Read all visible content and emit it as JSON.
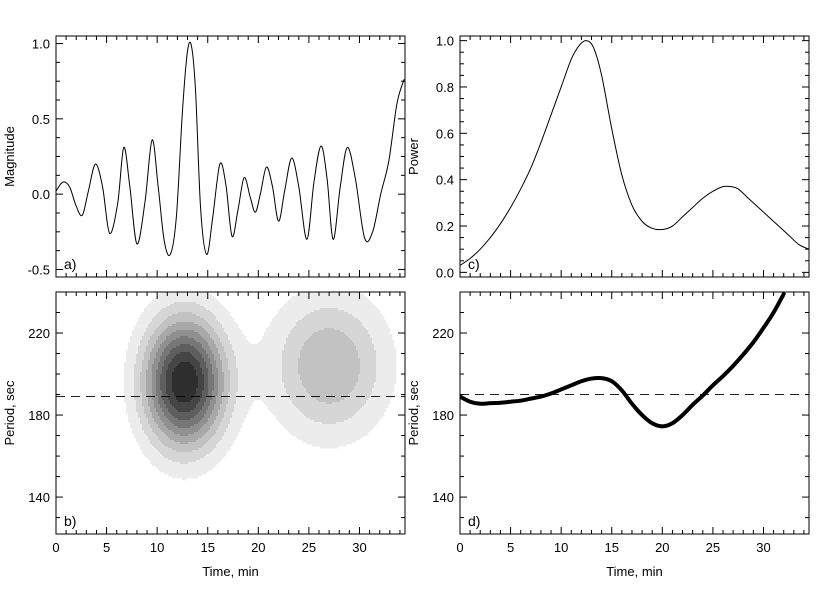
{
  "chart_data": [
    {
      "panel": "a)",
      "type": "line",
      "xlabel": "",
      "ylabel": "Magnitude",
      "xlim": [
        0,
        34.5
      ],
      "ylim": [
        -0.55,
        1.05
      ],
      "xticks": [
        0,
        5,
        10,
        15,
        20,
        25,
        30
      ],
      "yticks": [
        -0.5,
        0.0,
        0.5,
        1.0
      ],
      "ytick_labels": [
        "-0.5",
        "0.0",
        "0.5",
        "1.0"
      ],
      "series": [
        {
          "x": [
            0,
            0.5,
            0.9,
            1.4,
            2.0,
            2.6,
            3.2,
            3.9,
            4.6,
            5.3,
            6.1,
            6.7,
            7.3,
            8.0,
            8.8,
            9.5,
            10.1,
            10.7,
            11.3,
            11.9,
            12.5,
            13.0,
            13.4,
            13.8,
            14.3,
            14.9,
            15.5,
            16.2,
            16.8,
            17.4,
            18.0,
            18.6,
            19.2,
            19.7,
            20.2,
            20.8,
            21.4,
            22.0,
            22.6,
            23.3,
            24.0,
            24.8,
            25.5,
            26.2,
            26.8,
            27.4,
            28.1,
            28.8,
            29.6,
            30.5,
            31.3,
            32.1,
            32.9,
            33.7,
            34.4
          ],
          "y": [
            0.02,
            0.07,
            0.08,
            0.04,
            -0.08,
            -0.14,
            0.02,
            0.2,
            0.05,
            -0.26,
            -0.06,
            0.31,
            0.05,
            -0.33,
            -0.05,
            0.36,
            0.05,
            -0.31,
            -0.4,
            -0.15,
            0.55,
            0.95,
            0.98,
            0.68,
            -0.1,
            -0.4,
            -0.15,
            0.2,
            0.06,
            -0.28,
            -0.1,
            0.11,
            -0.02,
            -0.12,
            0.0,
            0.18,
            0.05,
            -0.18,
            0.02,
            0.24,
            0.05,
            -0.3,
            0.08,
            0.32,
            0.1,
            -0.3,
            0.05,
            0.31,
            0.1,
            -0.29,
            -0.25,
            0.0,
            0.22,
            0.6,
            0.76
          ]
        }
      ]
    },
    {
      "panel": "b)",
      "type": "contour",
      "xlabel": "Time, min",
      "ylabel": "Period, sec",
      "xlim": [
        0,
        34.5
      ],
      "ylim": [
        122,
        240
      ],
      "xticks": [
        0,
        5,
        10,
        15,
        20,
        25,
        30
      ],
      "yticks": [
        140,
        180,
        220
      ],
      "reference_line": 189,
      "peaks": [
        {
          "x": 12.7,
          "y": 196,
          "amplitude": 1.0,
          "sigma_x": 2.8,
          "sigma_y": 22
        },
        {
          "x": 27.0,
          "y": 204,
          "amplitude": 0.4,
          "sigma_x": 4.0,
          "sigma_y": 24
        }
      ]
    },
    {
      "panel": "c)",
      "type": "line",
      "xlabel": "",
      "ylabel": "Power",
      "xlim": [
        0,
        34.5
      ],
      "ylim": [
        -0.02,
        1.02
      ],
      "xticks": [
        0,
        5,
        10,
        15,
        20,
        25,
        30
      ],
      "yticks": [
        0.0,
        0.2,
        0.4,
        0.6,
        0.8,
        1.0
      ],
      "ytick_labels": [
        "0.0",
        "0.2",
        "0.4",
        "0.6",
        "0.8",
        "1.0"
      ],
      "series": [
        {
          "x": [
            0,
            1,
            2,
            3,
            4,
            5,
            6,
            7,
            8,
            9,
            10,
            11,
            11.8,
            12.5,
            13.2,
            14,
            15,
            16,
            17,
            18,
            19,
            20,
            21,
            22,
            23,
            24,
            25,
            26,
            26.8,
            27.5,
            28.5,
            29.5,
            30.5,
            31.5,
            32.5,
            33.5,
            34.5
          ],
          "y": [
            0.03,
            0.06,
            0.1,
            0.15,
            0.21,
            0.28,
            0.36,
            0.45,
            0.56,
            0.68,
            0.8,
            0.92,
            0.98,
            1.0,
            0.97,
            0.85,
            0.62,
            0.42,
            0.29,
            0.22,
            0.19,
            0.185,
            0.2,
            0.24,
            0.28,
            0.32,
            0.35,
            0.37,
            0.37,
            0.36,
            0.32,
            0.28,
            0.24,
            0.2,
            0.16,
            0.12,
            0.1
          ]
        }
      ]
    },
    {
      "panel": "d)",
      "type": "line",
      "xlabel": "Time, min",
      "ylabel": "Period, sec",
      "xlim": [
        0,
        34.5
      ],
      "ylim": [
        122,
        240
      ],
      "xticks": [
        0,
        5,
        10,
        15,
        20,
        25,
        30
      ],
      "yticks": [
        140,
        180,
        220
      ],
      "reference_line": 190,
      "series": [
        {
          "x": [
            0,
            1,
            2,
            3,
            4,
            5,
            6,
            7,
            8,
            9,
            10,
            11,
            12,
            13,
            14,
            15,
            16,
            17,
            18,
            19,
            20,
            21,
            22,
            23,
            24,
            25,
            26,
            27,
            28,
            29,
            30,
            31,
            32
          ],
          "y": [
            189,
            186.5,
            185.5,
            185.8,
            186,
            186.5,
            187,
            188,
            189,
            190.5,
            192.5,
            194.5,
            196.5,
            197.8,
            198,
            196.5,
            192,
            185.5,
            180,
            176,
            174.5,
            176,
            180,
            185,
            189.5,
            194.5,
            199,
            204,
            209.5,
            215.5,
            222.5,
            230,
            239
          ]
        }
      ]
    }
  ]
}
